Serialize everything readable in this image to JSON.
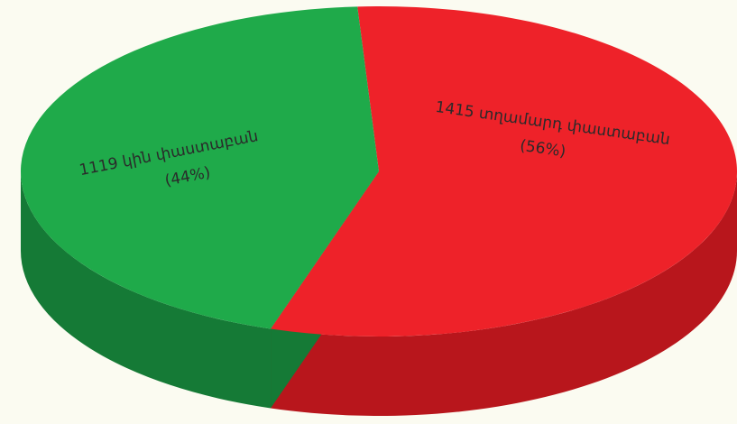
{
  "chart_data": {
    "type": "pie",
    "style": "3d",
    "slices": [
      {
        "label": "1119 կին փաստաբան",
        "percent_label": "(44%)",
        "value": 1119,
        "percent": 44,
        "color": "#1faa4a",
        "side_color": "#157a36"
      },
      {
        "label": "1415 տղամարդ փաստաբան",
        "percent_label": "(56%)",
        "value": 1415,
        "percent": 56,
        "color": "#ee2229",
        "side_color": "#b8161c"
      }
    ]
  },
  "background_color": "#fbfbf1"
}
